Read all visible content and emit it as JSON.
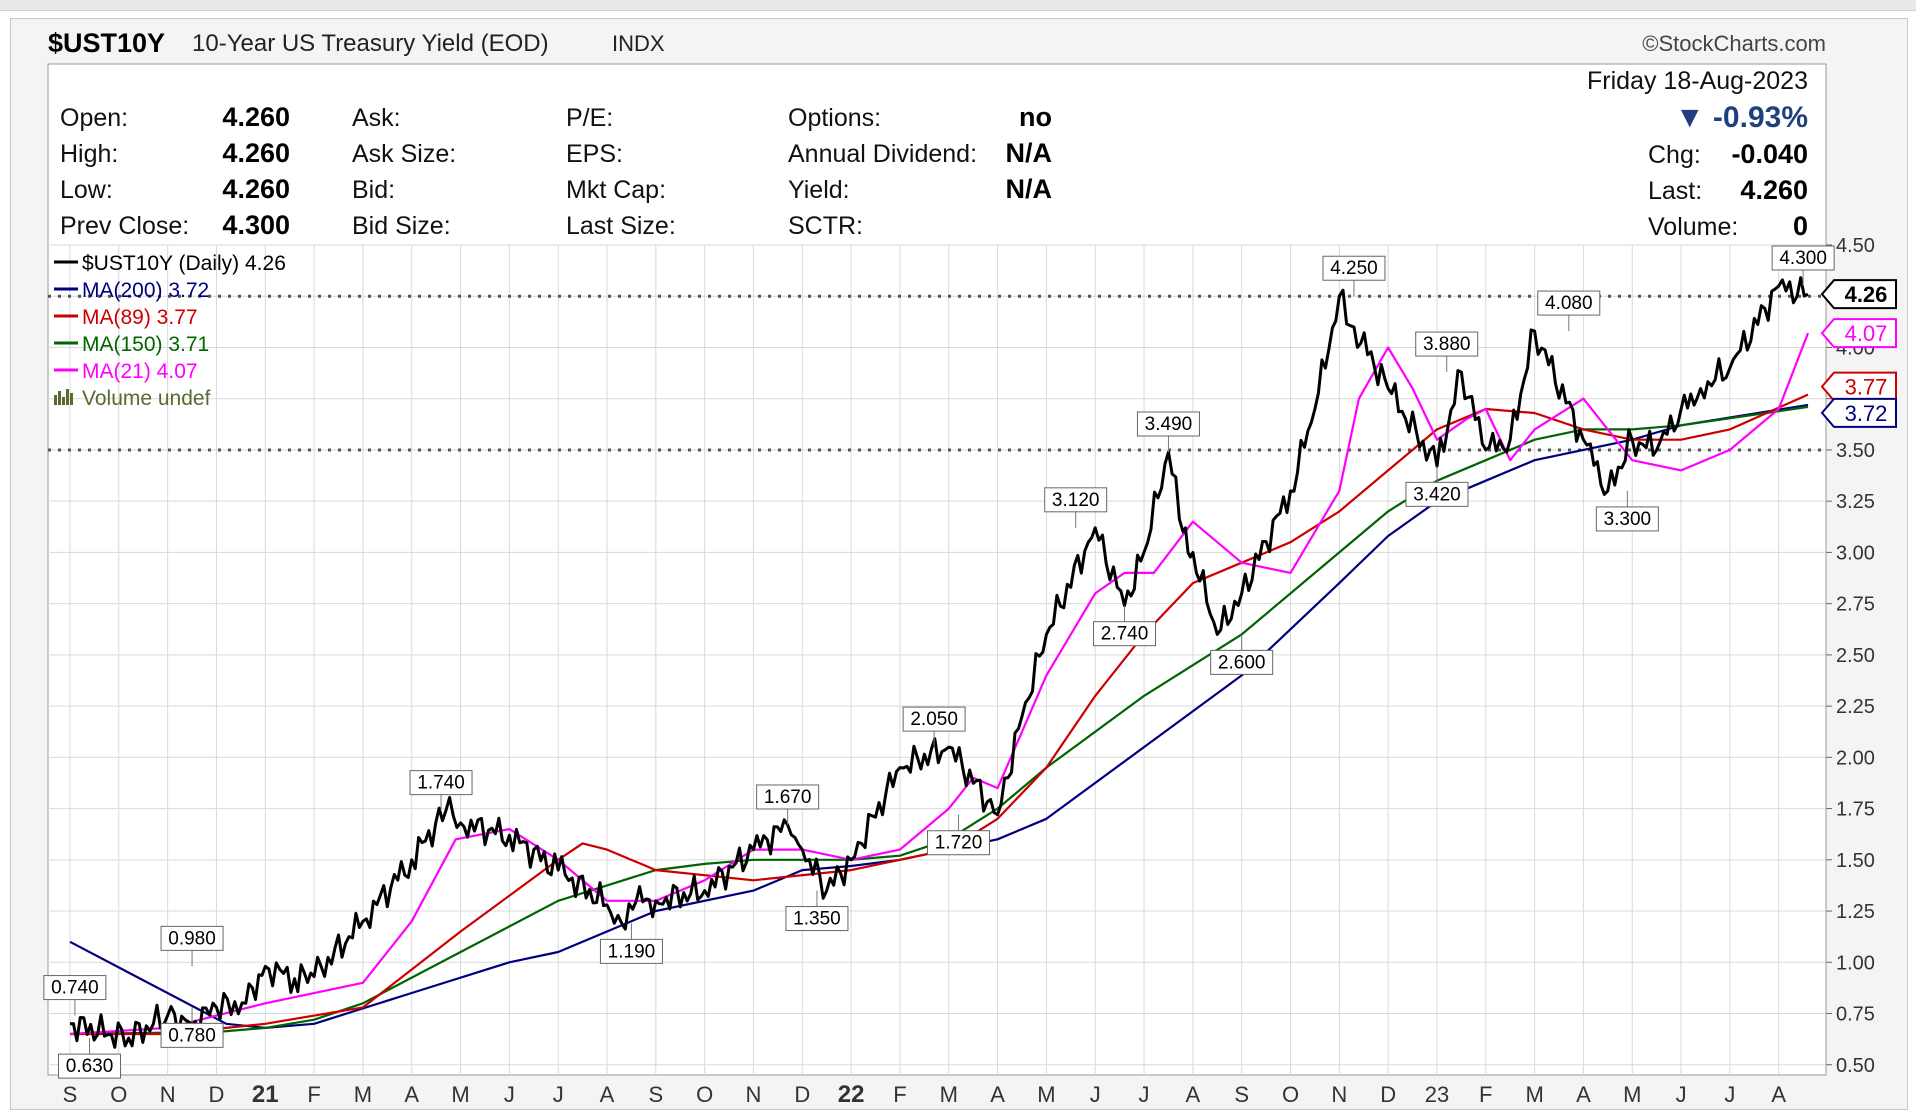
{
  "header": {
    "symbol": "$UST10Y",
    "description": "10-Year US Treasury Yield (EOD)",
    "exchange": "INDX",
    "brand": "©StockCharts.com",
    "date": "Friday  18-Aug-2023",
    "change_pct": "▼ -0.93%",
    "chg_label": "Chg:",
    "chg_value": "-0.040",
    "last_label": "Last:",
    "last_value": "4.260",
    "volume_label": "Volume:",
    "volume_value": "0"
  },
  "stats": [
    {
      "label": "Open:",
      "value": "4.260"
    },
    {
      "label": "High:",
      "value": "4.260"
    },
    {
      "label": "Low:",
      "value": "4.260"
    },
    {
      "label": "Prev Close:",
      "value": "4.300"
    }
  ],
  "stats2": [
    {
      "label": "Ask:",
      "value": ""
    },
    {
      "label": "Ask Size:",
      "value": ""
    },
    {
      "label": "Bid:",
      "value": ""
    },
    {
      "label": "Bid Size:",
      "value": ""
    }
  ],
  "stats3": [
    {
      "label": "P/E:",
      "value": ""
    },
    {
      "label": "EPS:",
      "value": ""
    },
    {
      "label": "Mkt Cap:",
      "value": ""
    },
    {
      "label": "Last Size:",
      "value": ""
    }
  ],
  "stats4": [
    {
      "label": "Options:",
      "value": "no"
    },
    {
      "label": "Annual Dividend:",
      "value": "N/A"
    },
    {
      "label": "Yield:",
      "value": "N/A"
    },
    {
      "label": "SCTR:",
      "value": ""
    }
  ],
  "colors": {
    "price": "#000000",
    "ma200": "#00007f",
    "ma89": "#cc0000",
    "ma150": "#006400",
    "ma21": "#ff00ff",
    "volume": "#556b2f",
    "grid": "#d9d9d9",
    "dotted": "#555555"
  },
  "legend": [
    {
      "text": "$UST10Y (Daily) 4.26",
      "color": "#000000",
      "kind": "line"
    },
    {
      "text": "MA(200) 3.72",
      "color": "#00007f",
      "kind": "line"
    },
    {
      "text": "MA(89) 3.77",
      "color": "#cc0000",
      "kind": "line"
    },
    {
      "text": "MA(150) 3.71",
      "color": "#006400",
      "kind": "line"
    },
    {
      "text": "MA(21) 4.07",
      "color": "#ff00ff",
      "kind": "line"
    },
    {
      "text": "Volume undef",
      "color": "#556b2f",
      "kind": "bars"
    }
  ],
  "chart_data": {
    "type": "line",
    "title": "$UST10Y 10-Year US Treasury Yield (EOD)",
    "ylim": [
      0.45,
      4.5
    ],
    "y_ticks": [
      0.5,
      0.75,
      1.0,
      1.25,
      1.5,
      1.75,
      2.0,
      2.25,
      2.5,
      2.75,
      3.0,
      3.25,
      3.5,
      3.75,
      4.0,
      4.25,
      4.5
    ],
    "x_ticks": [
      "S",
      "O",
      "N",
      "D",
      "21",
      "F",
      "M",
      "A",
      "M",
      "J",
      "J",
      "A",
      "S",
      "O",
      "N",
      "D",
      "22",
      "F",
      "M",
      "A",
      "M",
      "J",
      "J",
      "A",
      "S",
      "O",
      "N",
      "D",
      "23",
      "F",
      "M",
      "A",
      "M",
      "J",
      "J",
      "A"
    ],
    "bold_x_ticks": [
      "21",
      "22"
    ],
    "grid": true,
    "legend_position": "top-left",
    "horizontal_reference_lines": [
      4.25,
      3.5
    ],
    "series": [
      {
        "name": "$UST10Y (Daily)",
        "last": 4.26,
        "x": [
          0,
          1.2,
          2,
          2.5,
          3,
          3.6,
          4,
          4.6,
          5,
          6,
          7,
          7.7,
          8,
          9,
          10,
          11,
          11.3,
          11.6,
          12,
          13,
          14,
          14.7,
          15,
          15.5,
          16,
          17,
          18,
          19,
          19.5,
          20,
          21,
          21.6,
          22,
          22.5,
          22.8,
          23,
          23.5,
          24,
          25,
          25.5,
          26,
          26.3,
          27,
          28,
          28.5,
          29,
          29.5,
          30,
          31,
          31.5,
          32,
          32.5,
          33,
          33.4,
          34,
          35,
          35.6
        ],
        "values": [
          0.7,
          0.63,
          0.74,
          0.7,
          0.78,
          0.8,
          0.98,
          0.92,
          0.93,
          1.2,
          1.5,
          1.74,
          1.68,
          1.62,
          1.45,
          1.28,
          1.19,
          1.3,
          1.3,
          1.35,
          1.55,
          1.67,
          1.55,
          1.35,
          1.5,
          1.95,
          2.05,
          1.72,
          2.2,
          2.6,
          3.12,
          2.74,
          3.0,
          3.49,
          3.1,
          3.0,
          2.6,
          2.8,
          3.3,
          3.7,
          4.25,
          4.1,
          3.8,
          3.42,
          3.88,
          3.5,
          3.55,
          4.08,
          3.55,
          3.3,
          3.55,
          3.5,
          3.7,
          3.8,
          3.9,
          4.3,
          4.26
        ]
      },
      {
        "name": "MA(200)",
        "last": 3.72,
        "x": [
          0,
          3.2,
          4,
          5,
          7,
          9,
          10,
          12,
          14,
          15,
          16,
          17,
          18,
          19,
          20,
          22,
          24,
          26,
          27,
          28,
          29,
          30,
          31,
          32,
          33,
          35.6
        ],
        "values": [
          1.1,
          0.7,
          0.68,
          0.7,
          0.85,
          1.0,
          1.05,
          1.25,
          1.35,
          1.45,
          1.47,
          1.5,
          1.55,
          1.6,
          1.7,
          2.05,
          2.4,
          2.85,
          3.08,
          3.25,
          3.35,
          3.45,
          3.5,
          3.55,
          3.62,
          3.72
        ]
      },
      {
        "name": "MA(89)",
        "last": 3.77,
        "x": [
          0,
          2,
          4,
          6,
          8,
          10,
          10.5,
          11,
          12,
          14,
          16,
          17,
          18,
          19,
          20,
          21,
          22,
          23,
          24,
          25,
          26,
          27,
          28,
          29,
          30,
          31,
          32,
          33,
          34,
          35.6
        ],
        "values": [
          0.65,
          0.65,
          0.7,
          0.78,
          1.15,
          1.5,
          1.58,
          1.55,
          1.45,
          1.4,
          1.45,
          1.5,
          1.55,
          1.7,
          1.95,
          2.3,
          2.6,
          2.85,
          2.95,
          3.05,
          3.2,
          3.4,
          3.6,
          3.7,
          3.68,
          3.6,
          3.55,
          3.55,
          3.6,
          3.77
        ]
      },
      {
        "name": "MA(150)",
        "last": 3.71,
        "x": [
          0,
          3,
          4,
          5,
          6,
          8,
          10,
          12,
          13,
          14,
          15,
          16,
          17,
          18,
          19,
          20,
          22,
          24,
          25,
          26,
          27,
          28,
          29,
          30,
          31,
          32,
          33,
          35.6
        ],
        "values": [
          0.65,
          0.66,
          0.68,
          0.72,
          0.8,
          1.05,
          1.3,
          1.45,
          1.48,
          1.5,
          1.5,
          1.5,
          1.52,
          1.6,
          1.75,
          1.95,
          2.3,
          2.6,
          2.8,
          3.0,
          3.2,
          3.35,
          3.45,
          3.55,
          3.6,
          3.6,
          3.62,
          3.71
        ]
      },
      {
        "name": "MA(21)",
        "last": 4.07,
        "x": [
          0,
          2,
          4,
          6,
          7,
          7.9,
          9,
          10,
          11,
          12,
          13,
          14,
          15,
          16,
          17,
          18,
          18.5,
          19,
          20,
          21,
          21.6,
          22.2,
          23,
          24,
          25,
          26,
          26.4,
          27,
          27.5,
          28,
          28.6,
          29,
          29.5,
          30,
          31,
          32,
          33,
          34,
          35,
          35.6
        ],
        "values": [
          0.65,
          0.68,
          0.8,
          0.9,
          1.2,
          1.6,
          1.65,
          1.5,
          1.3,
          1.3,
          1.4,
          1.55,
          1.55,
          1.5,
          1.55,
          1.75,
          1.9,
          1.85,
          2.4,
          2.8,
          2.9,
          2.9,
          3.15,
          2.95,
          2.9,
          3.3,
          3.75,
          4.0,
          3.8,
          3.55,
          3.65,
          3.7,
          3.45,
          3.6,
          3.75,
          3.45,
          3.4,
          3.5,
          3.7,
          4.07
        ]
      }
    ],
    "annotations": [
      {
        "text": "0.740",
        "x": 0.1,
        "y": 0.74,
        "pos": "above"
      },
      {
        "text": "0.630",
        "x": 0.4,
        "y": 0.63,
        "pos": "below"
      },
      {
        "text": "0.980",
        "x": 2.5,
        "y": 0.98,
        "pos": "above"
      },
      {
        "text": "0.780",
        "x": 2.5,
        "y": 0.78,
        "pos": "below"
      },
      {
        "text": "1.740",
        "x": 7.6,
        "y": 1.74,
        "pos": "above"
      },
      {
        "text": "1.190",
        "x": 11.5,
        "y": 1.19,
        "pos": "below"
      },
      {
        "text": "1.670",
        "x": 14.7,
        "y": 1.67,
        "pos": "above"
      },
      {
        "text": "1.350",
        "x": 15.3,
        "y": 1.35,
        "pos": "below"
      },
      {
        "text": "2.050",
        "x": 17.7,
        "y": 2.05,
        "pos": "above"
      },
      {
        "text": "1.720",
        "x": 18.2,
        "y": 1.72,
        "pos": "below"
      },
      {
        "text": "3.120",
        "x": 20.6,
        "y": 3.12,
        "pos": "above"
      },
      {
        "text": "2.740",
        "x": 21.6,
        "y": 2.74,
        "pos": "below"
      },
      {
        "text": "3.490",
        "x": 22.5,
        "y": 3.49,
        "pos": "above"
      },
      {
        "text": "2.600",
        "x": 24.0,
        "y": 2.6,
        "pos": "below"
      },
      {
        "text": "4.250",
        "x": 26.3,
        "y": 4.25,
        "pos": "above"
      },
      {
        "text": "3.880",
        "x": 28.2,
        "y": 3.88,
        "pos": "above"
      },
      {
        "text": "3.420",
        "x": 28.0,
        "y": 3.42,
        "pos": "below"
      },
      {
        "text": "4.080",
        "x": 30.7,
        "y": 4.08,
        "pos": "above"
      },
      {
        "text": "3.300",
        "x": 31.9,
        "y": 3.3,
        "pos": "below"
      },
      {
        "text": "4.300",
        "x": 35.5,
        "y": 4.3,
        "pos": "above"
      }
    ],
    "right_labels": [
      {
        "text": "4.26",
        "y": 4.26,
        "color": "#000000",
        "bold": true
      },
      {
        "text": "4.07",
        "y": 4.07,
        "color": "#ff00ff",
        "bold": false
      },
      {
        "text": "3.77",
        "y": 3.77,
        "color": "#cc0000",
        "bold": false
      },
      {
        "text": "3.72",
        "y": 3.72,
        "color": "#00007f",
        "bold": false
      }
    ]
  }
}
